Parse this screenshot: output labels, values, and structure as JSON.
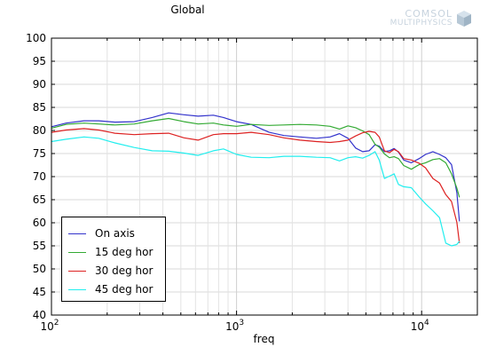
{
  "chart_data": {
    "type": "line",
    "title": "Global",
    "xlabel": "freq",
    "ylabel": "",
    "xscale": "log",
    "xlim": [
      100,
      20000
    ],
    "ylim": [
      40,
      100
    ],
    "yticks": [
      40,
      45,
      50,
      55,
      60,
      65,
      70,
      75,
      80,
      85,
      90,
      95,
      100
    ],
    "xtick_labels": [
      {
        "base": "10",
        "exp": "2"
      },
      {
        "base": "10",
        "exp": "3"
      },
      {
        "base": "10",
        "exp": "4"
      }
    ],
    "grid": true,
    "legend_position": "bottom-left",
    "series": [
      {
        "name": "On axis",
        "color": "#3333cc",
        "x": [
          100,
          120,
          150,
          180,
          220,
          280,
          350,
          430,
          520,
          620,
          750,
          850,
          1000,
          1200,
          1500,
          1800,
          2200,
          2700,
          3200,
          3600,
          4000,
          4400,
          4800,
          5200,
          5600,
          5900,
          6300,
          6700,
          7100,
          7500,
          8000,
          8800,
          9700,
          10500,
          11500,
          12500,
          13500,
          14500,
          15500,
          16000
        ],
        "y": [
          80.8,
          81.6,
          82.1,
          82.1,
          81.8,
          81.9,
          82.8,
          83.8,
          83.4,
          83.1,
          83.3,
          82.8,
          81.9,
          81.3,
          79.6,
          78.9,
          78.6,
          78.3,
          78.6,
          79.3,
          78.3,
          76.2,
          75.4,
          75.6,
          76.9,
          76.6,
          75.4,
          75.6,
          76.1,
          75.3,
          73.6,
          73.0,
          73.9,
          74.8,
          75.4,
          74.8,
          74.1,
          72.6,
          66.5,
          60.3
        ]
      },
      {
        "name": "15 deg hor",
        "color": "#33aa33",
        "x": [
          100,
          120,
          150,
          180,
          220,
          280,
          350,
          430,
          520,
          620,
          750,
          850,
          1000,
          1200,
          1500,
          1800,
          2200,
          2700,
          3200,
          3600,
          4000,
          4400,
          4800,
          5200,
          5600,
          5900,
          6300,
          6700,
          7100,
          7500,
          8000,
          8800,
          9700,
          10500,
          11500,
          12500,
          13500,
          14500,
          15500,
          16000
        ],
        "y": [
          80.5,
          81.3,
          81.6,
          81.4,
          81.2,
          81.4,
          82.1,
          82.6,
          81.9,
          81.4,
          81.6,
          81.2,
          80.9,
          81.3,
          81.1,
          81.2,
          81.3,
          81.2,
          80.9,
          80.3,
          81.0,
          80.6,
          79.9,
          79.1,
          77.0,
          76.4,
          74.9,
          74.1,
          74.3,
          73.9,
          72.4,
          71.6,
          72.6,
          73.0,
          73.7,
          73.9,
          73.0,
          70.6,
          67.5,
          65.5
        ]
      },
      {
        "name": "30 deg hor",
        "color": "#dd2222",
        "x": [
          100,
          120,
          150,
          180,
          220,
          280,
          350,
          430,
          520,
          620,
          750,
          850,
          1000,
          1200,
          1500,
          1800,
          2200,
          2700,
          3200,
          3600,
          4000,
          4400,
          4800,
          5200,
          5600,
          5900,
          6300,
          6700,
          7100,
          7500,
          8000,
          8800,
          9700,
          10500,
          11500,
          12500,
          13500,
          14500,
          15500,
          16000
        ],
        "y": [
          79.6,
          80.1,
          80.4,
          80.1,
          79.4,
          79.1,
          79.3,
          79.4,
          78.4,
          77.9,
          79.1,
          79.3,
          79.3,
          79.6,
          79.1,
          78.4,
          77.9,
          77.6,
          77.4,
          77.6,
          77.9,
          78.8,
          79.5,
          79.8,
          79.6,
          78.6,
          75.6,
          75.2,
          75.9,
          75.4,
          73.9,
          73.6,
          72.9,
          71.9,
          69.6,
          68.6,
          66.1,
          64.6,
          60.1,
          55.6
        ]
      },
      {
        "name": "45 deg hor",
        "color": "#22eeee",
        "x": [
          100,
          120,
          150,
          180,
          220,
          280,
          350,
          430,
          520,
          620,
          750,
          850,
          1000,
          1200,
          1500,
          1800,
          2200,
          2700,
          3200,
          3600,
          4000,
          4400,
          4800,
          5200,
          5600,
          5900,
          6300,
          6700,
          7100,
          7500,
          8000,
          8800,
          9700,
          10500,
          11500,
          12500,
          13500,
          14500,
          15500,
          16000
        ],
        "y": [
          77.6,
          78.1,
          78.6,
          78.3,
          77.3,
          76.3,
          75.6,
          75.5,
          75.1,
          74.6,
          75.6,
          76.0,
          74.8,
          74.2,
          74.1,
          74.4,
          74.4,
          74.2,
          74.1,
          73.4,
          74.1,
          74.3,
          74.0,
          74.6,
          75.4,
          73.6,
          69.6,
          70.1,
          70.6,
          68.3,
          67.8,
          67.6,
          65.6,
          64.1,
          62.6,
          61.1,
          55.6,
          55.0,
          55.3,
          56.0
        ]
      }
    ]
  },
  "logo": {
    "line1": "COMSOL",
    "line2": "MULTIPHYSICS"
  }
}
